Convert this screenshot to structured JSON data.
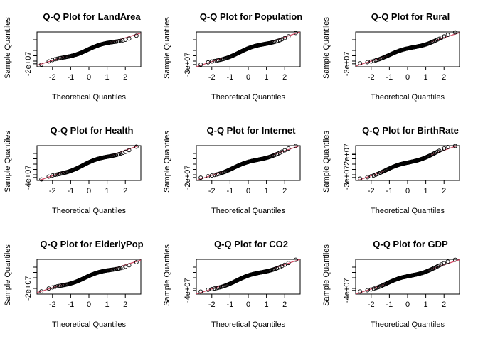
{
  "colors": {
    "points": "#000000",
    "line": "#d4506a",
    "frame": "#000000"
  },
  "chart_data": [
    {
      "type": "scatter",
      "title": "Q-Q Plot for LandArea",
      "xlabel": "Theoretical Quantiles",
      "ylabel": "Sample Quantiles",
      "x_ticks": [
        "-2",
        "-1",
        "0",
        "1",
        "2"
      ],
      "x_tick_values": [
        -2,
        -1,
        0,
        1,
        2
      ],
      "xlim": [
        -2.85,
        2.85
      ],
      "y_ticks": [
        "-2e+07"
      ],
      "y_tick_values": [
        -2.1
      ],
      "ylim": [
        -2.5,
        2.2
      ],
      "n": 110,
      "fit_line": {
        "x": [
          -2.85,
          2.85
        ],
        "y": [
          -2.3,
          2.05
        ]
      }
    },
    {
      "type": "scatter",
      "title": "Q-Q Plot for Population",
      "xlabel": "Theoretical Quantiles",
      "ylabel": "Sample Quantiles",
      "x_ticks": [
        "-2",
        "-1",
        "0",
        "1",
        "2"
      ],
      "x_tick_values": [
        -2,
        -1,
        0,
        1,
        2
      ],
      "xlim": [
        -2.85,
        2.85
      ],
      "y_ticks": [
        "-3e+07"
      ],
      "y_tick_values": [
        -2.2
      ],
      "ylim": [
        -2.5,
        2.2
      ],
      "n": 110,
      "fit_line": {
        "x": [
          -2.85,
          2.85
        ],
        "y": [
          -2.5,
          2.2
        ]
      }
    },
    {
      "type": "scatter",
      "title": "Q-Q Plot for Rural",
      "xlabel": "Theoretical Quantiles",
      "ylabel": "Sample Quantiles",
      "x_ticks": [
        "-2",
        "-1",
        "0",
        "1",
        "2"
      ],
      "x_tick_values": [
        -2,
        -1,
        0,
        1,
        2
      ],
      "xlim": [
        -2.85,
        2.85
      ],
      "y_ticks": [
        "-3e+07"
      ],
      "y_tick_values": [
        -2.1
      ],
      "ylim": [
        -2.5,
        2.2
      ],
      "n": 110,
      "fit_line": {
        "x": [
          -2.85,
          2.85
        ],
        "y": [
          -2.4,
          2.1
        ]
      }
    },
    {
      "type": "scatter",
      "title": "Q-Q Plot for Health",
      "xlabel": "Theoretical Quantiles",
      "ylabel": "Sample Quantiles",
      "x_ticks": [
        "-2",
        "-1",
        "0",
        "1",
        "2"
      ],
      "x_tick_values": [
        -2,
        -1,
        0,
        1,
        2
      ],
      "xlim": [
        -2.85,
        2.85
      ],
      "y_ticks": [
        "-4e+07"
      ],
      "y_tick_values": [
        -2.1
      ],
      "ylim": [
        -2.5,
        2.2
      ],
      "n": 110,
      "fit_line": {
        "x": [
          -2.85,
          2.85
        ],
        "y": [
          -2.6,
          2.3
        ]
      }
    },
    {
      "type": "scatter",
      "title": "Q-Q Plot for Internet",
      "xlabel": "Theoretical Quantiles",
      "ylabel": "Sample Quantiles",
      "x_ticks": [
        "-2",
        "-1",
        "0",
        "1",
        "2"
      ],
      "x_tick_values": [
        -2,
        -1,
        0,
        1,
        2
      ],
      "xlim": [
        -2.85,
        2.85
      ],
      "y_ticks": [
        "-2e+07"
      ],
      "y_tick_values": [
        -2.1
      ],
      "ylim": [
        -2.5,
        2.2
      ],
      "n": 110,
      "fit_line": {
        "x": [
          -2.85,
          2.85
        ],
        "y": [
          -2.5,
          2.2
        ]
      }
    },
    {
      "type": "scatter",
      "title": "Q-Q Plot for BirthRate",
      "xlabel": "Theoretical Quantiles",
      "ylabel": "Sample Quantiles",
      "x_ticks": [
        "-2",
        "-1",
        "0",
        "1",
        "2"
      ],
      "x_tick_values": [
        -2,
        -1,
        0,
        1,
        2
      ],
      "xlim": [
        -2.85,
        2.85
      ],
      "y_ticks": [
        "-3e+07",
        "2e+07"
      ],
      "y_tick_values": [
        -2.1,
        1.0
      ],
      "ylim": [
        -2.5,
        2.2
      ],
      "n": 110,
      "fit_line": {
        "x": [
          -2.85,
          2.85
        ],
        "y": [
          -2.6,
          2.3
        ]
      }
    },
    {
      "type": "scatter",
      "title": "Q-Q Plot for ElderlyPop",
      "xlabel": "Theoretical Quantiles",
      "ylabel": "Sample Quantiles",
      "x_ticks": [
        "-2",
        "-1",
        "0",
        "1",
        "2"
      ],
      "x_tick_values": [
        -2,
        -1,
        0,
        1,
        2
      ],
      "xlim": [
        -2.85,
        2.85
      ],
      "y_ticks": [
        "-2e+07"
      ],
      "y_tick_values": [
        -1.7
      ],
      "ylim": [
        -2.5,
        2.2
      ],
      "n": 110,
      "fit_line": {
        "x": [
          -2.85,
          2.85
        ],
        "y": [
          -2.3,
          2.1
        ]
      }
    },
    {
      "type": "scatter",
      "title": "Q-Q Plot for CO2",
      "xlabel": "Theoretical Quantiles",
      "ylabel": "Sample Quantiles",
      "x_ticks": [
        "-2",
        "-1",
        "0",
        "1",
        "2"
      ],
      "x_tick_values": [
        -2,
        -1,
        0,
        1,
        2
      ],
      "xlim": [
        -2.85,
        2.85
      ],
      "y_ticks": [
        "-4e+07"
      ],
      "y_tick_values": [
        -2.0
      ],
      "ylim": [
        -2.5,
        2.2
      ],
      "n": 110,
      "fit_line": {
        "x": [
          -2.85,
          2.85
        ],
        "y": [
          -2.5,
          2.2
        ]
      }
    },
    {
      "type": "scatter",
      "title": "Q-Q Plot for GDP",
      "xlabel": "Theoretical Quantiles",
      "ylabel": "Sample Quantiles",
      "x_ticks": [
        "-2",
        "-1",
        "0",
        "1",
        "2"
      ],
      "x_tick_values": [
        -2,
        -1,
        0,
        1,
        2
      ],
      "xlim": [
        -2.85,
        2.85
      ],
      "y_ticks": [
        "-4e+07"
      ],
      "y_tick_values": [
        -2.0
      ],
      "ylim": [
        -2.5,
        2.2
      ],
      "n": 110,
      "fit_line": {
        "x": [
          -2.85,
          2.85
        ],
        "y": [
          -2.5,
          2.15
        ]
      }
    }
  ]
}
